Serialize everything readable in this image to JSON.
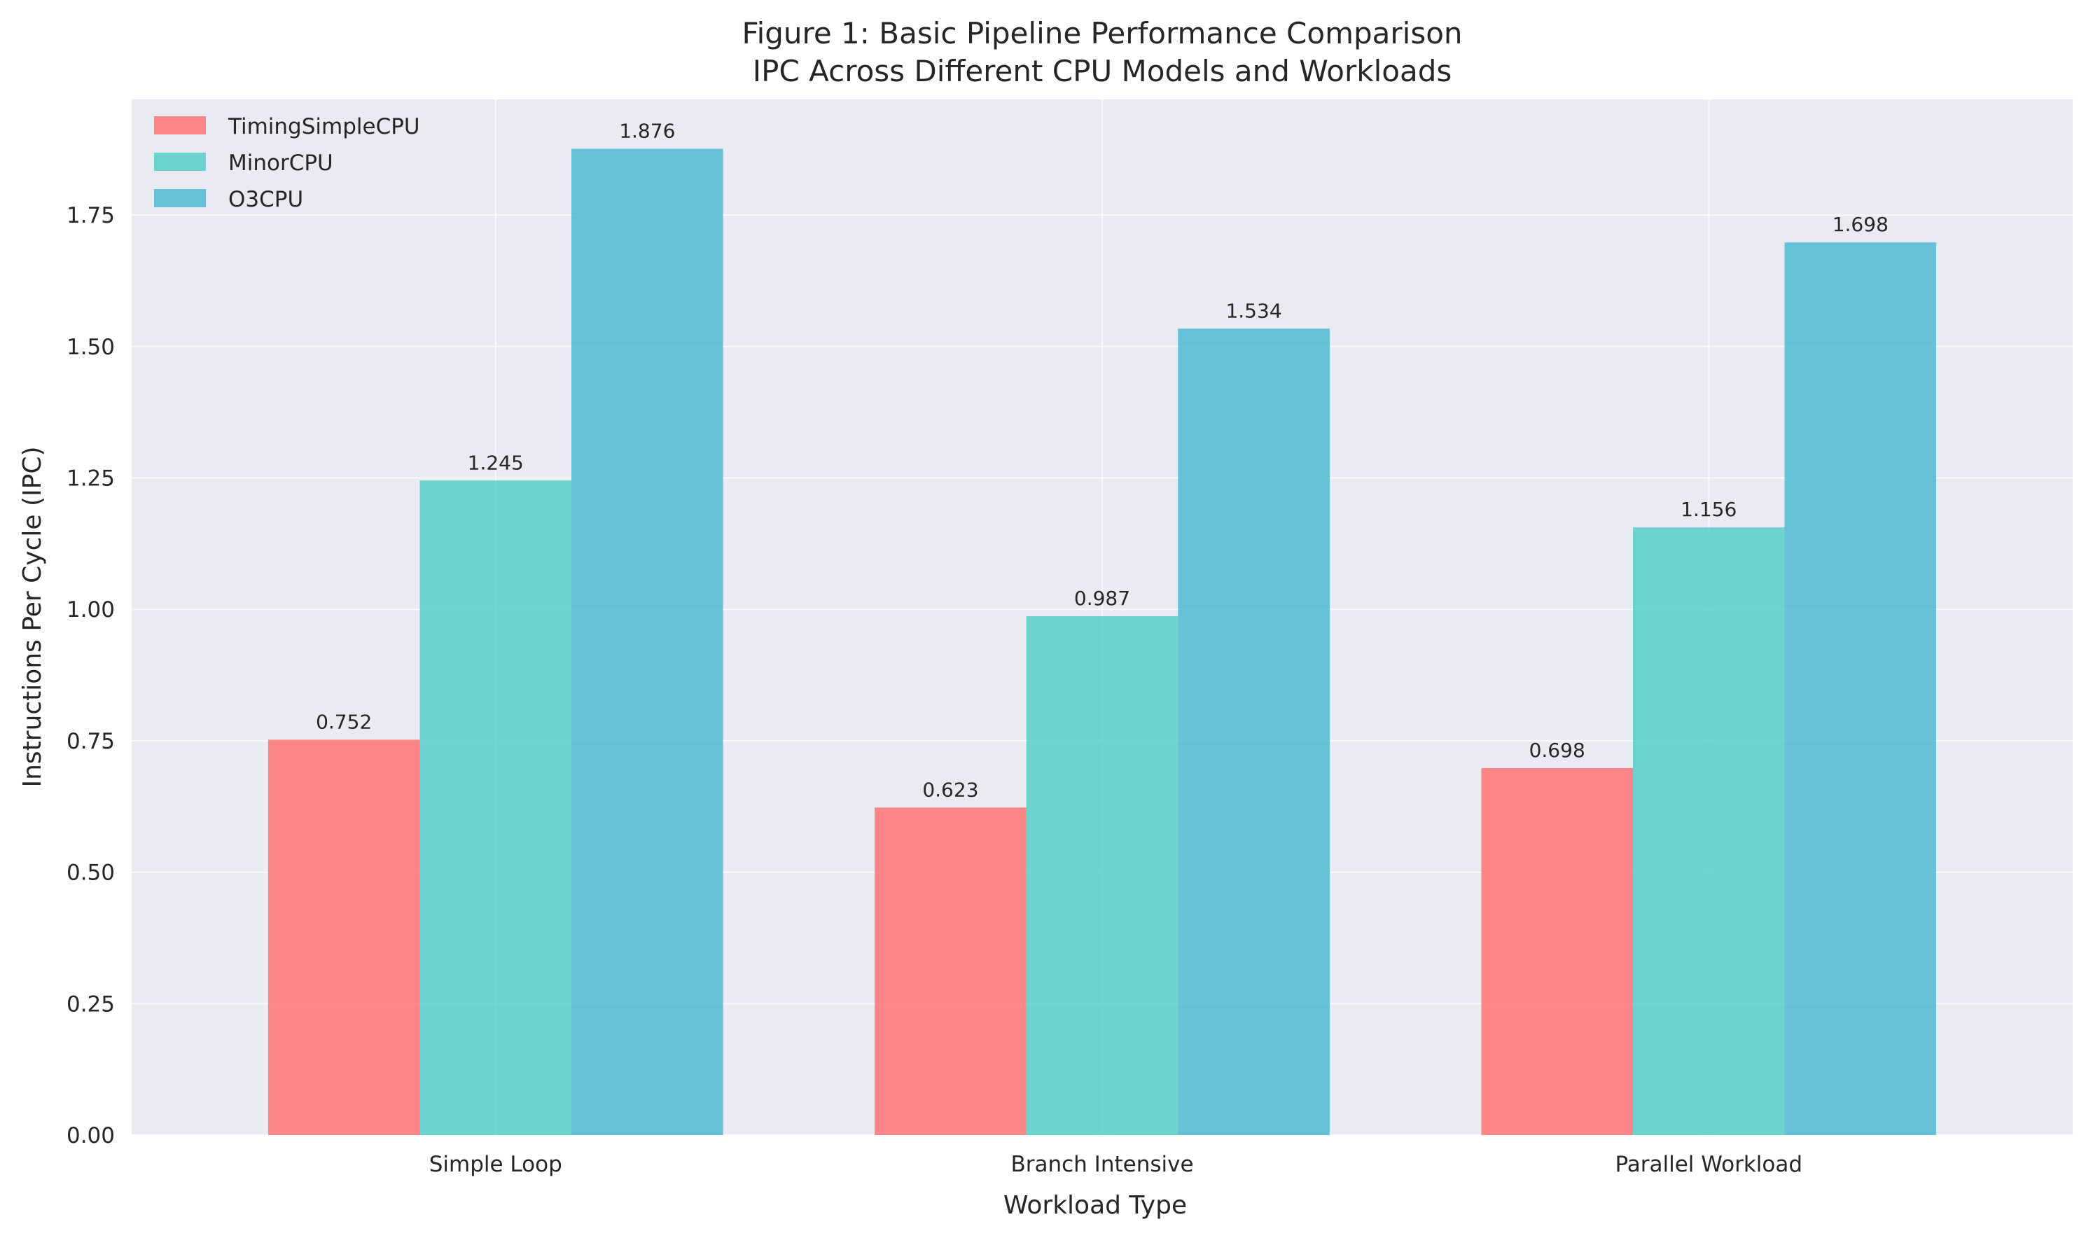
{
  "chart_data": {
    "type": "bar",
    "title": "Figure 1: Basic Pipeline Performance Comparison",
    "subtitle": "IPC Across Different CPU Models and Workloads",
    "xlabel": "Workload Type",
    "ylabel": "Instructions Per Cycle (IPC)",
    "categories": [
      "Simple Loop",
      "Branch Intensive",
      "Parallel Workload"
    ],
    "series": [
      {
        "name": "TimingSimpleCPU",
        "color": "#FF6B6B",
        "values": [
          0.752,
          0.623,
          0.698
        ],
        "labels": [
          "0.752",
          "0.623",
          "0.698"
        ]
      },
      {
        "name": "MinorCPU",
        "color": "#4ECDC4",
        "values": [
          1.245,
          0.987,
          1.156
        ],
        "labels": [
          "1.245",
          "0.987",
          "1.156"
        ]
      },
      {
        "name": "O3CPU",
        "color": "#45B7D1",
        "values": [
          1.876,
          1.534,
          1.698
        ],
        "labels": [
          "1.876",
          "1.534",
          "1.698"
        ]
      }
    ],
    "ylim": [
      0,
      1.97
    ],
    "yticks": [
      0,
      0.25,
      0.5,
      0.75,
      1.0,
      1.25,
      1.5,
      1.75
    ],
    "ytick_labels": [
      "0.00",
      "0.25",
      "0.50",
      "0.75",
      "1.00",
      "1.25",
      "1.50",
      "1.75"
    ],
    "grid": true,
    "legend_position": "top-left",
    "plot_background": "#EAEAF2",
    "grid_color": "#FFFFFF"
  }
}
